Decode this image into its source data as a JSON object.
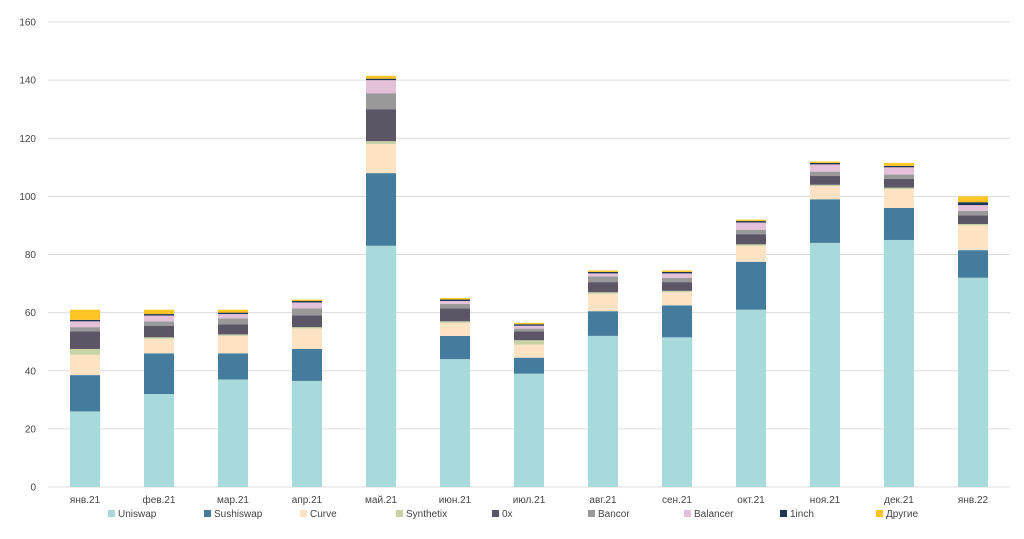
{
  "chart_data": {
    "type": "bar",
    "stacked": true,
    "title": "",
    "xlabel": "",
    "ylabel": "",
    "ylim": [
      0,
      160
    ],
    "yticks": [
      "0",
      "20",
      "40",
      "60",
      "80",
      "100",
      "120",
      "140",
      "160"
    ],
    "grid": true,
    "legend_position": "bottom",
    "categories": [
      "янв.21",
      "фев.21",
      "мар.21",
      "апр.21",
      "май.21",
      "июн.21",
      "июл.21",
      "авг.21",
      "сен.21",
      "окт.21",
      "ноя.21",
      "дек.21",
      "янв.22"
    ],
    "series": [
      {
        "name": "Uniswap",
        "color": "#a8dadc",
        "values": [
          26,
          32,
          37,
          36.5,
          83,
          44,
          39,
          52,
          51.5,
          61,
          84,
          85,
          72
        ]
      },
      {
        "name": "Sushiswap",
        "color": "#457b9d",
        "values": [
          12.5,
          14,
          9,
          11,
          25,
          8,
          5.5,
          8.5,
          11,
          16.5,
          15,
          11,
          9.5
        ]
      },
      {
        "name": "Curve",
        "color": "#fde2c4",
        "values": [
          7,
          5,
          6,
          7,
          10,
          4.5,
          4.5,
          6,
          4.5,
          5.5,
          4.5,
          6.5,
          8.5
        ]
      },
      {
        "name": "Synthetix",
        "color": "#c8d3a5",
        "values": [
          2,
          0.5,
          0.5,
          0.5,
          1,
          0.5,
          1.5,
          0.5,
          0.5,
          0.5,
          0.5,
          0.5,
          0.5
        ]
      },
      {
        "name": "0x",
        "color": "#5b5566",
        "values": [
          6,
          4,
          3.5,
          4,
          11,
          4.5,
          3,
          3.5,
          3,
          3.5,
          3,
          3,
          3
        ]
      },
      {
        "name": "Bancor",
        "color": "#999999",
        "values": [
          1.5,
          1.5,
          2,
          2.5,
          5.5,
          1.5,
          1,
          2,
          1.5,
          1.5,
          1.5,
          1.5,
          1.5
        ]
      },
      {
        "name": "Balancer",
        "color": "#e4c1d9",
        "values": [
          2,
          2,
          1.5,
          2,
          4.5,
          1,
          1,
          1,
          1.5,
          2.5,
          2.5,
          2.5,
          2
        ]
      },
      {
        "name": "1inch",
        "color": "#1d3557",
        "values": [
          0.5,
          0.5,
          0.5,
          0.5,
          0.5,
          0.5,
          0.5,
          0.5,
          0.5,
          0.5,
          0.5,
          0.5,
          1
        ]
      },
      {
        "name": "Другие",
        "color": "#fcc525",
        "values": [
          3.5,
          1.5,
          1,
          0.5,
          1,
          0.5,
          0.5,
          0.5,
          0.5,
          0.5,
          0.5,
          1,
          2
        ]
      }
    ]
  }
}
